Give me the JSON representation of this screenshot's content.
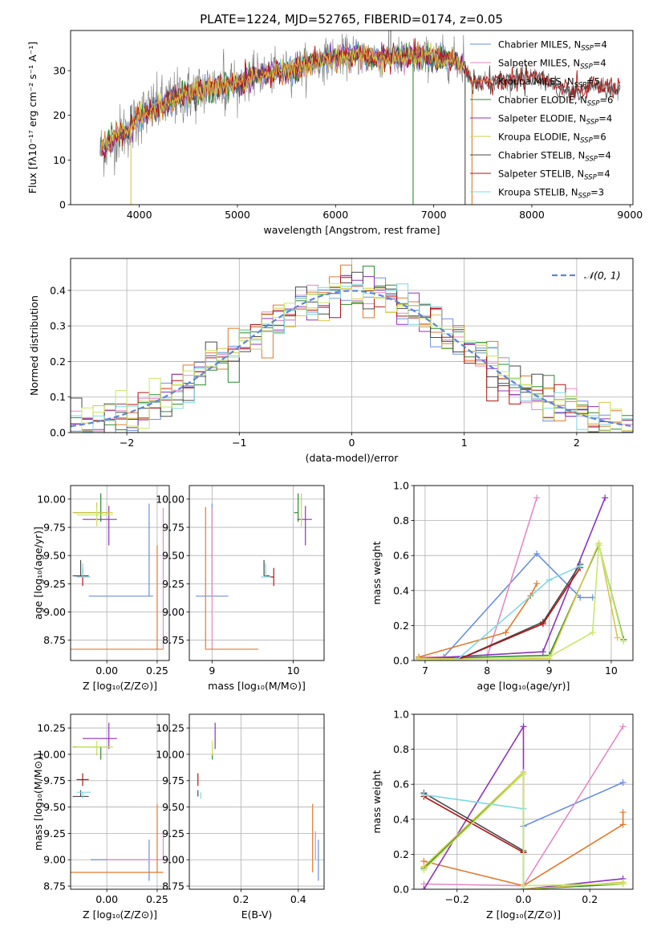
{
  "figure_title": "PLATE=1224, MJD=52765, FIBERID=0174, z=0.05",
  "colors": {
    "series": [
      "#6b8fde",
      "#e58ac4",
      "#e07a2e",
      "#2f8a2f",
      "#8b35b8",
      "#d6c84a",
      "#4a4a4a",
      "#b01515",
      "#7fd8e0",
      "#c8e86a"
    ],
    "data": "#777777"
  },
  "chart_data": [
    {
      "id": "spectrum",
      "type": "line",
      "title": "PLATE=1224, MJD=52765, FIBERID=0174, z=0.05",
      "xlabel": "wavelength [Angstrom, rest frame]",
      "ylabel": "Flux [fλ10⁻¹⁷ erg cm⁻² s⁻¹ A⁻¹]",
      "xlim": [
        3300,
        9030
      ],
      "ylim": [
        0,
        39
      ],
      "xticks": [
        "4000",
        "5000",
        "6000",
        "7000",
        "8000",
        "9000"
      ],
      "yticks": [
        "0",
        "10",
        "20",
        "30"
      ],
      "legend": "top-right",
      "legend_entries": [
        {
          "label": "Chabrier MILES, N",
          "sub": "SSP",
          "suffix": "=4"
        },
        {
          "label": "Salpeter MILES, N",
          "sub": "SSP",
          "suffix": "=4"
        },
        {
          "label": "Kroupa MILES, N",
          "sub": "SSP",
          "suffix": "=5"
        },
        {
          "label": "Chabrier ELODIE, N",
          "sub": "SSP",
          "suffix": "=6"
        },
        {
          "label": "Salpeter ELODIE, N",
          "sub": "SSP",
          "suffix": "=4"
        },
        {
          "label": "Kroupa ELODIE, N",
          "sub": "SSP",
          "suffix": "=6"
        },
        {
          "label": "Chabrier STELIB, N",
          "sub": "SSP",
          "suffix": "=4"
        },
        {
          "label": "Salpeter STELIB, N",
          "sub": "SSP",
          "suffix": "=4"
        },
        {
          "label": "Kroupa STELIB, N",
          "sub": "SSP",
          "suffix": "=3"
        }
      ],
      "continuum": [
        [
          3600,
          12
        ],
        [
          3700,
          14
        ],
        [
          3800,
          16
        ],
        [
          3900,
          17
        ],
        [
          4000,
          20
        ],
        [
          4200,
          22
        ],
        [
          4400,
          24
        ],
        [
          4600,
          25.5
        ],
        [
          4800,
          26.5
        ],
        [
          5000,
          27
        ],
        [
          5200,
          29
        ],
        [
          5400,
          29.5
        ],
        [
          5600,
          30.5
        ],
        [
          5800,
          32
        ],
        [
          6000,
          33
        ],
        [
          6200,
          33.5
        ],
        [
          6400,
          33
        ],
        [
          6560,
          33
        ],
        [
          6800,
          33
        ],
        [
          7000,
          33
        ],
        [
          7200,
          32.5
        ],
        [
          7300,
          31
        ],
        [
          7400,
          27.5
        ],
        [
          7600,
          27.5
        ],
        [
          7800,
          28
        ],
        [
          8000,
          29
        ],
        [
          8200,
          27
        ],
        [
          8400,
          25
        ],
        [
          8600,
          26.5
        ],
        [
          8800,
          26.5
        ],
        [
          8900,
          26
        ]
      ]
    },
    {
      "id": "residuals",
      "type": "histogram",
      "xlabel": "(data-model)/error",
      "ylabel": "Normed distribution",
      "xlim": [
        -2.5,
        2.5
      ],
      "ylim": [
        0,
        0.49
      ],
      "xticks": [
        "−2",
        "−1",
        "0",
        "1",
        "2"
      ],
      "yticks": [
        "0.0",
        "0.1",
        "0.2",
        "0.3",
        "0.4"
      ],
      "legend": "top-right",
      "legend_label": "𝒩(0, 1)",
      "bin_width": 0.1,
      "grid": true
    },
    {
      "id": "age-vs-Z",
      "type": "errorbar",
      "xlabel": "Z [log₁₀(Z/Z⊙)]",
      "ylabel": "age  [log₁₀(age/yr)]",
      "xlim": [
        -0.18,
        0.31
      ],
      "ylim": [
        8.57,
        10.12
      ],
      "xticks": [
        "0.00",
        "0.25"
      ],
      "yticks": [
        "8.75",
        "9.00",
        "9.25",
        "9.50",
        "9.75",
        "10.00"
      ],
      "points": [
        {
          "s": 0,
          "x": 0.21,
          "y": 9.14,
          "xe": [
            0.3,
            0.02
          ],
          "ye": [
            0.0,
            0.82
          ]
        },
        {
          "s": 1,
          "x": 0.28,
          "y": 9.0,
          "xe": [
            0.0,
            0.0
          ],
          "ye": [
            0.33,
            0.92
          ]
        },
        {
          "s": 2,
          "x": 0.25,
          "y": 8.67,
          "xe": [
            0.43,
            0.03
          ],
          "ye": [
            0.0,
            0.92
          ]
        },
        {
          "s": 3,
          "x": -0.03,
          "y": 9.88,
          "xe": [
            0.14,
            0.03
          ],
          "ye": [
            0.08,
            0.17
          ]
        },
        {
          "s": 4,
          "x": 0.01,
          "y": 9.82,
          "xe": [
            0.13,
            0.04
          ],
          "ye": [
            0.23,
            0.12
          ]
        },
        {
          "s": 5,
          "x": -0.05,
          "y": 9.88,
          "xe": [
            0.12,
            0.08
          ],
          "ye": [
            0.12,
            0.09
          ]
        },
        {
          "s": 6,
          "x": -0.13,
          "y": 9.32,
          "xe": [
            0.04,
            0.04
          ],
          "ye": [
            0.0,
            0.14
          ]
        },
        {
          "s": 7,
          "x": -0.12,
          "y": 9.31,
          "xe": [
            0.03,
            0.0
          ],
          "ye": [
            0.08,
            0.08
          ]
        },
        {
          "s": 8,
          "x": -0.12,
          "y": 9.31,
          "xe": [
            0.03,
            0.04
          ],
          "ye": [
            0.0,
            0.12
          ]
        },
        {
          "s": 9,
          "x": -0.05,
          "y": 9.86,
          "xe": [
            0.1,
            0.08
          ],
          "ye": [
            0.09,
            0.07
          ]
        }
      ]
    },
    {
      "id": "age-vs-mass",
      "type": "errorbar",
      "xlabel": "mass [log₁₀(M/M⊙)]",
      "xlim": [
        8.72,
        10.38
      ],
      "ylim": [
        8.57,
        10.12
      ],
      "xticks": [
        "9",
        "10"
      ],
      "yticks": [
        "8.75",
        "9.00",
        "9.25",
        "9.50",
        "9.75",
        "10.00"
      ],
      "points": [
        {
          "s": 0,
          "x": 9.0,
          "y": 9.14,
          "xe": [
            0.2,
            0.2
          ],
          "ye": [
            0.0,
            0.82
          ]
        },
        {
          "s": 1,
          "x": 9.0,
          "y": 9.0,
          "xe": [
            0.0,
            0.0
          ],
          "ye": [
            0.33,
            0.92
          ]
        },
        {
          "s": 2,
          "x": 8.92,
          "y": 8.67,
          "xe": [
            0.0,
            0.65
          ],
          "ye": [
            0.0,
            1.26
          ]
        },
        {
          "s": 3,
          "x": 10.06,
          "y": 9.88,
          "xe": [
            0.05,
            0.0
          ],
          "ye": [
            0.08,
            0.17
          ]
        },
        {
          "s": 4,
          "x": 10.15,
          "y": 9.82,
          "xe": [
            0.1,
            0.08
          ],
          "ye": [
            0.23,
            0.12
          ]
        },
        {
          "s": 5,
          "x": 10.1,
          "y": 9.88,
          "xe": [
            0.0,
            0.0
          ],
          "ye": [
            0.12,
            0.17
          ]
        },
        {
          "s": 6,
          "x": 9.64,
          "y": 9.32,
          "xe": [
            0.0,
            0.07
          ],
          "ye": [
            0.0,
            0.14
          ]
        },
        {
          "s": 7,
          "x": 9.76,
          "y": 9.31,
          "xe": [
            0.06,
            0.0
          ],
          "ye": [
            0.08,
            0.08
          ]
        },
        {
          "s": 8,
          "x": 9.66,
          "y": 9.31,
          "xe": [
            0.06,
            0.06
          ],
          "ye": [
            0.0,
            0.12
          ]
        },
        {
          "s": 9,
          "x": 10.1,
          "y": 9.86,
          "xe": [
            0.0,
            0.0
          ],
          "ye": [
            0.09,
            0.07
          ]
        }
      ]
    },
    {
      "id": "massweight-vs-age",
      "type": "line",
      "xlabel": "age  [log₁₀(age/yr)]",
      "ylabel": "mass weight",
      "xlim": [
        6.82,
        10.35
      ],
      "ylim": [
        0,
        1
      ],
      "xticks": [
        "7",
        "8",
        "9",
        "10"
      ],
      "yticks": [
        "0.0",
        "0.2",
        "0.4",
        "0.6",
        "0.8",
        "1.0"
      ],
      "grid": true,
      "series": [
        {
          "s": 0,
          "x": [
            6.9,
            7.3,
            8.8,
            9.5,
            9.7
          ],
          "y": [
            0.01,
            0.02,
            0.61,
            0.36,
            0.36
          ]
        },
        {
          "s": 1,
          "x": [
            6.9,
            8.0,
            8.8
          ],
          "y": [
            0.02,
            0.02,
            0.93
          ]
        },
        {
          "s": 2,
          "x": [
            6.9,
            8.3,
            8.7,
            8.8
          ],
          "y": [
            0.02,
            0.16,
            0.37,
            0.44
          ]
        },
        {
          "s": 3,
          "x": [
            6.9,
            9.0,
            9.8,
            10.2
          ],
          "y": [
            0.01,
            0.03,
            0.66,
            0.12
          ]
        },
        {
          "s": 4,
          "x": [
            6.9,
            8.9,
            9.9
          ],
          "y": [
            0.01,
            0.05,
            0.93
          ]
        },
        {
          "s": 5,
          "x": [
            6.9,
            9.0,
            9.8,
            10.1
          ],
          "y": [
            0.01,
            0.01,
            0.67,
            0.13
          ]
        },
        {
          "s": 6,
          "x": [
            7.5,
            8.9,
            9.5
          ],
          "y": [
            0.0,
            0.22,
            0.55
          ]
        },
        {
          "s": 7,
          "x": [
            7.5,
            8.9,
            9.5
          ],
          "y": [
            0.0,
            0.21,
            0.53
          ]
        },
        {
          "s": 8,
          "x": [
            7.5,
            9.0,
            9.5
          ],
          "y": [
            0.0,
            0.46,
            0.54
          ]
        },
        {
          "s": 9,
          "x": [
            6.9,
            9.0,
            9.7,
            9.8,
            10.2
          ],
          "y": [
            0.0,
            0.02,
            0.16,
            0.66,
            0.11
          ]
        }
      ]
    },
    {
      "id": "mass-vs-Z",
      "type": "errorbar",
      "xlabel": "Z [log₁₀(Z/Z⊙)]",
      "ylabel": "mass [log₁₀(M/M⊙)]",
      "xlim": [
        -0.18,
        0.31
      ],
      "ylim": [
        8.72,
        10.38
      ],
      "xticks": [
        "0.00",
        "0.25"
      ],
      "yticks": [
        "8.75",
        "9.00",
        "9.25",
        "9.50",
        "9.75",
        "10.00",
        "10.25"
      ],
      "points": [
        {
          "s": 0,
          "x": 0.21,
          "y": 9.0,
          "xe": [
            0.29,
            0.0
          ],
          "ye": [
            0.2,
            0.19
          ]
        },
        {
          "s": 1,
          "x": 0.28,
          "y": 9.0,
          "xe": [
            0.28,
            0.03
          ],
          "ye": [
            0.0,
            0.27
          ]
        },
        {
          "s": 2,
          "x": 0.25,
          "y": 8.88,
          "xe": [
            0.43,
            0.03
          ],
          "ye": [
            0.0,
            0.65
          ]
        },
        {
          "s": 3,
          "x": -0.03,
          "y": 10.07,
          "xe": [
            0.14,
            0.04
          ],
          "ye": [
            0.12,
            0.0
          ]
        },
        {
          "s": 4,
          "x": 0.01,
          "y": 10.15,
          "xe": [
            0.13,
            0.04
          ],
          "ye": [
            0.1,
            0.15
          ]
        },
        {
          "s": 5,
          "x": -0.05,
          "y": 10.07,
          "xe": [
            0.12,
            0.08
          ],
          "ye": [
            0.08,
            0.02
          ]
        },
        {
          "s": 6,
          "x": -0.13,
          "y": 9.6,
          "xe": [
            0.04,
            0.04
          ],
          "ye": [
            0.0,
            0.06
          ]
        },
        {
          "s": 7,
          "x": -0.12,
          "y": 9.76,
          "xe": [
            0.03,
            0.03
          ],
          "ye": [
            0.06,
            0.06
          ]
        },
        {
          "s": 8,
          "x": -0.12,
          "y": 9.64,
          "xe": [
            0.03,
            0.04
          ],
          "ye": [
            0.06,
            0.0
          ]
        },
        {
          "s": 9,
          "x": -0.05,
          "y": 10.07,
          "xe": [
            0.1,
            0.08
          ],
          "ye": [
            0.06,
            0.06
          ]
        }
      ]
    },
    {
      "id": "mass-vs-ebv",
      "type": "errorbar",
      "xlabel": "E(B-V)",
      "xlim": [
        0.02,
        0.49
      ],
      "ylim": [
        8.72,
        10.38
      ],
      "xticks": [
        "0.2",
        "0.4"
      ],
      "yticks": [
        "8.75",
        "9.00",
        "9.25",
        "9.50",
        "9.75",
        "10.00",
        "10.25"
      ],
      "points": [
        {
          "s": 0,
          "x": 0.47,
          "y": 9.0,
          "xe": [
            0.0,
            0.0
          ],
          "ye": [
            0.2,
            0.19
          ]
        },
        {
          "s": 1,
          "x": 0.46,
          "y": 9.0,
          "xe": [
            0.0,
            0.0
          ],
          "ye": [
            0.0,
            0.27
          ]
        },
        {
          "s": 2,
          "x": 0.45,
          "y": 9.05,
          "xe": [
            0.0,
            0.0
          ],
          "ye": [
            0.17,
            0.48
          ]
        },
        {
          "s": 3,
          "x": 0.1,
          "y": 10.07,
          "xe": [
            0.0,
            0.0
          ],
          "ye": [
            0.12,
            0.0
          ]
        },
        {
          "s": 4,
          "x": 0.11,
          "y": 10.15,
          "xe": [
            0.0,
            0.0
          ],
          "ye": [
            0.1,
            0.15
          ]
        },
        {
          "s": 5,
          "x": 0.1,
          "y": 10.07,
          "xe": [
            0.0,
            0.0
          ],
          "ye": [
            0.08,
            0.02
          ]
        },
        {
          "s": 6,
          "x": 0.05,
          "y": 9.6,
          "xe": [
            0.0,
            0.0
          ],
          "ye": [
            0.0,
            0.06
          ]
        },
        {
          "s": 7,
          "x": 0.05,
          "y": 9.76,
          "xe": [
            0.0,
            0.0
          ],
          "ye": [
            0.06,
            0.06
          ]
        },
        {
          "s": 8,
          "x": 0.06,
          "y": 9.64,
          "xe": [
            0.0,
            0.0
          ],
          "ye": [
            0.06,
            0.0
          ]
        },
        {
          "s": 9,
          "x": 0.1,
          "y": 10.07,
          "xe": [
            0.0,
            0.0
          ],
          "ye": [
            0.06,
            0.06
          ]
        }
      ]
    },
    {
      "id": "massweight-vs-Z",
      "type": "line",
      "xlabel": "Z [log₁₀(Z/Z⊙)]",
      "ylabel": "mass weight",
      "xlim": [
        -0.33,
        0.33
      ],
      "ylim": [
        0,
        1
      ],
      "xticks": [
        "−0.2",
        "0.0",
        "0.2"
      ],
      "yticks": [
        "0.0",
        "0.2",
        "0.4",
        "0.6",
        "0.8",
        "1.0"
      ],
      "grid": true,
      "series": [
        {
          "s": 0,
          "x": [
            0.0,
            0.3
          ],
          "y": [
            0.36,
            0.61
          ]
        },
        {
          "s": 1,
          "x": [
            -0.3,
            0.0,
            0.3
          ],
          "y": [
            0.03,
            0.02,
            0.93
          ]
        },
        {
          "s": 2,
          "x": [
            -0.3,
            0.0,
            0.3,
            0.3
          ],
          "y": [
            0.16,
            0.02,
            0.37,
            0.44
          ]
        },
        {
          "s": 3,
          "x": [
            -0.3,
            0.0,
            0.0,
            0.3
          ],
          "y": [
            0.12,
            0.66,
            0.0,
            0.03
          ]
        },
        {
          "s": 4,
          "x": [
            -0.3,
            0.0,
            0.0,
            0.3
          ],
          "y": [
            0.0,
            0.93,
            0.0,
            0.06
          ]
        },
        {
          "s": 5,
          "x": [
            -0.3,
            0.0,
            0.0,
            0.3
          ],
          "y": [
            0.13,
            0.67,
            0.0,
            0.04
          ]
        },
        {
          "s": 6,
          "x": [
            -0.3,
            0.0,
            0.0
          ],
          "y": [
            0.55,
            0.22,
            0.21
          ]
        },
        {
          "s": 7,
          "x": [
            -0.3,
            0.0,
            0.0
          ],
          "y": [
            0.53,
            0.21,
            0.21
          ]
        },
        {
          "s": 8,
          "x": [
            -0.3,
            0.0,
            0.0
          ],
          "y": [
            0.54,
            0.46,
            0.0
          ]
        },
        {
          "s": 9,
          "x": [
            -0.3,
            0.0,
            0.0,
            0.3
          ],
          "y": [
            0.11,
            0.66,
            0.02,
            0.03
          ]
        }
      ]
    }
  ]
}
